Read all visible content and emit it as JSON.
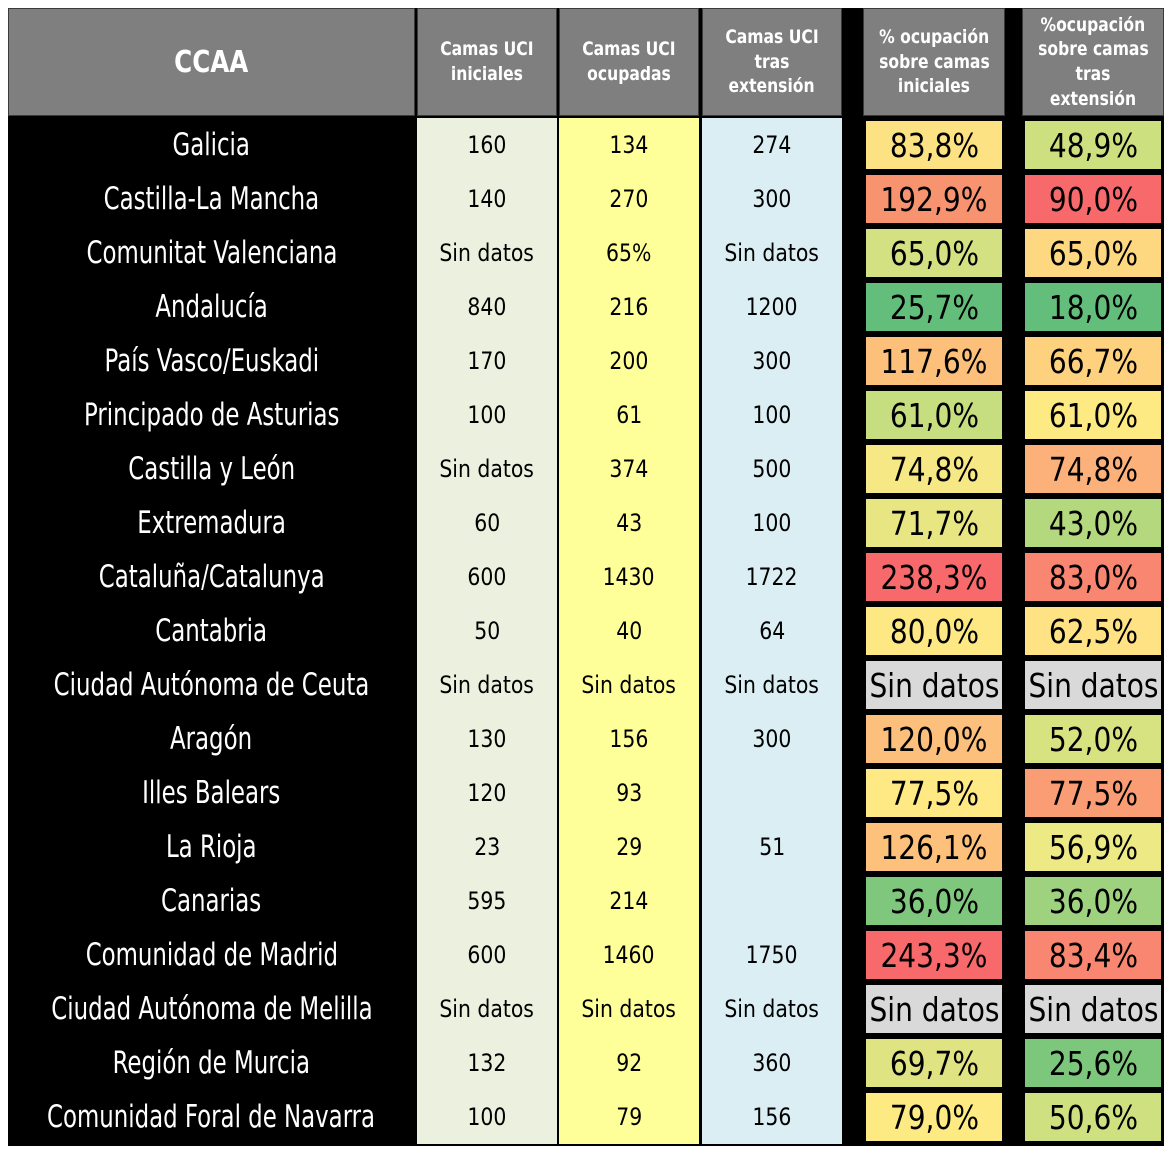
{
  "chart_data": {
    "type": "table",
    "columns": [
      "CCAA",
      "Camas UCI iniciales",
      "Camas UCI ocupadas",
      "Camas UCI tras extensión",
      "% ocupación sobre camas iniciales",
      "%ocupación sobre camas tras extensión"
    ],
    "header_lines": [
      [
        "CCAA"
      ],
      [
        "Camas UCI",
        "iniciales"
      ],
      [
        "Camas UCI",
        "ocupadas"
      ],
      [
        "Camas UCI tras",
        "extensión"
      ],
      [
        "% ocupación",
        "sobre camas",
        "iniciales"
      ],
      [
        "%ocupación",
        "sobre camas",
        "tras extensión"
      ]
    ],
    "rows": [
      {
        "ccaa": "Galicia",
        "iniciales": "160",
        "ocupadas": "134",
        "extension": "274",
        "pct_iniciales": "83,8%",
        "pct_extension": "48,9%",
        "color_iniciales": "#fde283",
        "color_extension": "#cde07f"
      },
      {
        "ccaa": "Castilla-La Mancha",
        "iniciales": "140",
        "ocupadas": "270",
        "extension": "300",
        "pct_iniciales": "192,9%",
        "pct_extension": "90,0%",
        "color_iniciales": "#f8936f",
        "color_extension": "#f8696b"
      },
      {
        "ccaa": "Comunitat Valenciana",
        "iniciales": "Sin datos",
        "ocupadas": "65%",
        "extension": "Sin datos",
        "pct_iniciales": "65,0%",
        "pct_extension": "65,0%",
        "color_iniciales": "#d3e182",
        "color_extension": "#fed880"
      },
      {
        "ccaa": "Andalucía",
        "iniciales": "840",
        "ocupadas": "216",
        "extension": "1200",
        "pct_iniciales": "25,7%",
        "pct_extension": "18,0%",
        "color_iniciales": "#63be7b",
        "color_extension": "#63be7b"
      },
      {
        "ccaa": "País Vasco/Euskadi",
        "iniciales": "170",
        "ocupadas": "200",
        "extension": "300",
        "pct_iniciales": "117,6%",
        "pct_extension": "66,7%",
        "color_iniciales": "#fcc07b",
        "color_extension": "#fed17f"
      },
      {
        "ccaa": "Principado de Asturias",
        "iniciales": "100",
        "ocupadas": "61",
        "extension": "100",
        "pct_iniciales": "61,0%",
        "pct_extension": "61,0%",
        "color_iniciales": "#c6dd80",
        "color_extension": "#feea83"
      },
      {
        "ccaa": "Castilla y León",
        "iniciales": "Sin datos",
        "ocupadas": "374",
        "extension": "500",
        "pct_iniciales": "74,8%",
        "pct_extension": "74,8%",
        "color_iniciales": "#f6e884",
        "color_extension": "#fcb17a"
      },
      {
        "ccaa": "Extremadura",
        "iniciales": "60",
        "ocupadas": "43",
        "extension": "100",
        "pct_iniciales": "71,7%",
        "pct_extension": "43,0%",
        "color_iniciales": "#e8e583",
        "color_extension": "#b4d87e"
      },
      {
        "ccaa": "Cataluña/Catalunya",
        "iniciales": "600",
        "ocupadas": "1430",
        "extension": "1722",
        "pct_iniciales": "238,3%",
        "pct_extension": "83,0%",
        "color_iniciales": "#f8696b",
        "color_extension": "#f98670"
      },
      {
        "ccaa": "Cantabria",
        "iniciales": "50",
        "ocupadas": "40",
        "extension": "64",
        "pct_iniciales": "80,0%",
        "pct_extension": "62,5%",
        "color_iniciales": "#fee883",
        "color_extension": "#fee283"
      },
      {
        "ccaa": "Ciudad Autónoma de Ceuta",
        "iniciales": "Sin datos",
        "ocupadas": "Sin datos",
        "extension": "Sin datos",
        "pct_iniciales": "Sin datos",
        "pct_extension": "Sin datos",
        "color_iniciales": "#d9d9d9",
        "color_extension": "#d9d9d9"
      },
      {
        "ccaa": "Aragón",
        "iniciales": "130",
        "ocupadas": "156",
        "extension": "300",
        "pct_iniciales": "120,0%",
        "pct_extension": "52,0%",
        "color_iniciales": "#fdc07c",
        "color_extension": "#d7e281"
      },
      {
        "ccaa": "Illes Balears",
        "iniciales": "120",
        "ocupadas": "93",
        "extension": "",
        "pct_iniciales": "77,5%",
        "pct_extension": "77,5%",
        "color_iniciales": "#fee984",
        "color_extension": "#fa9d75"
      },
      {
        "ccaa": "La Rioja",
        "iniciales": "23",
        "ocupadas": "29",
        "extension": "51",
        "pct_iniciales": "126,1%",
        "pct_extension": "56,9%",
        "color_iniciales": "#fdc17c",
        "color_extension": "#edea85"
      },
      {
        "ccaa": "Canarias",
        "iniciales": "595",
        "ocupadas": "214",
        "extension": "",
        "pct_iniciales": "36,0%",
        "pct_extension": "36,0%",
        "color_iniciales": "#7fc77d",
        "color_extension": "#9ed27f"
      },
      {
        "ccaa": "Comunidad de Madrid",
        "iniciales": "600",
        "ocupadas": "1460",
        "extension": "1750",
        "pct_iniciales": "243,3%",
        "pct_extension": "83,4%",
        "color_iniciales": "#f8696b",
        "color_extension": "#f98670"
      },
      {
        "ccaa": "Ciudad Autónoma de Melilla",
        "iniciales": "Sin datos",
        "ocupadas": "Sin datos",
        "extension": "Sin datos",
        "pct_iniciales": "Sin datos",
        "pct_extension": "Sin datos",
        "color_iniciales": "#d9d9d9",
        "color_extension": "#d9d9d9"
      },
      {
        "ccaa": "Región de Murcia",
        "iniciales": "132",
        "ocupadas": "92",
        "extension": "360",
        "pct_iniciales": "69,7%",
        "pct_extension": "25,6%",
        "color_iniciales": "#e0e382",
        "color_extension": "#7dc77c"
      },
      {
        "ccaa": "Comunidad Foral de Navarra",
        "iniciales": "100",
        "ocupadas": "79",
        "extension": "156",
        "pct_iniciales": "79,0%",
        "pct_extension": "50,6%",
        "color_iniciales": "#feea83",
        "color_extension": "#cfe081"
      }
    ],
    "column_colors": {
      "iniciales": "#ebf1de",
      "ocupadas": "#ffff99",
      "extension": "#daeef3",
      "header": "#7f7f7f",
      "ccaa": "#000000"
    }
  }
}
